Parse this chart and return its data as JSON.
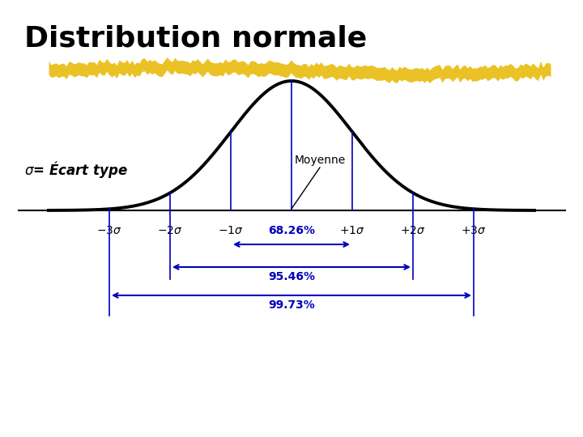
{
  "title": "Distribution normale",
  "title_fontsize": 26,
  "title_fontweight": "bold",
  "sigma_label": "σ = Écart type",
  "moyenne_label": "Moyenne",
  "label_68": "68.26%",
  "label_95": "95.46%",
  "label_99": "99.73%",
  "background_color": "#ffffff",
  "curve_color": "#000000",
  "highlight_color": "#0000bb",
  "text_color": "#000000",
  "highlight_text_color": "#0000bb",
  "yellow_stripe_color": "#e8b800",
  "curve_linewidth": 2.8,
  "arrow_color": "#0000bb",
  "baseline_color": "#000000"
}
